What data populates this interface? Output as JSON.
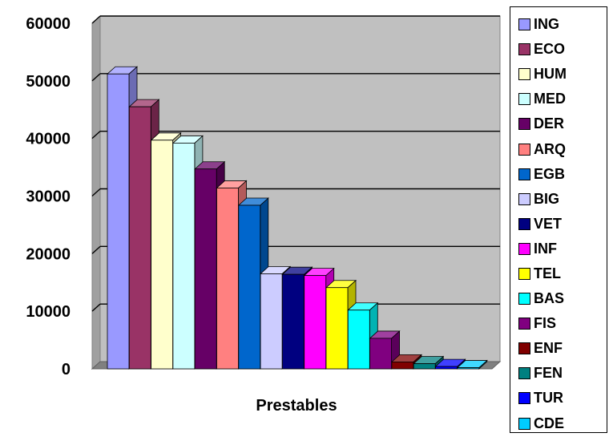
{
  "chart_data": {
    "type": "bar",
    "title": "",
    "xlabel": "Prestables",
    "ylabel": "",
    "ylim": [
      0,
      60000
    ],
    "yticks": [
      0,
      10000,
      20000,
      30000,
      40000,
      50000,
      60000
    ],
    "grid": true,
    "legend_position": "right",
    "series": [
      {
        "name": "ING",
        "value": 51200,
        "color": "#9999ff"
      },
      {
        "name": "ECO",
        "value": 45500,
        "color": "#993366"
      },
      {
        "name": "HUM",
        "value": 39700,
        "color": "#ffffcc"
      },
      {
        "name": "MED",
        "value": 39200,
        "color": "#ccffff"
      },
      {
        "name": "DER",
        "value": 34700,
        "color": "#660066"
      },
      {
        "name": "ARQ",
        "value": 31400,
        "color": "#ff8080"
      },
      {
        "name": "EGB",
        "value": 28400,
        "color": "#0066cc"
      },
      {
        "name": "BIG",
        "value": 16500,
        "color": "#ccccff"
      },
      {
        "name": "VET",
        "value": 16400,
        "color": "#000080"
      },
      {
        "name": "INF",
        "value": 16200,
        "color": "#ff00ff"
      },
      {
        "name": "TEL",
        "value": 14100,
        "color": "#ffff00"
      },
      {
        "name": "BAS",
        "value": 10200,
        "color": "#00ffff"
      },
      {
        "name": "FIS",
        "value": 5300,
        "color": "#800080"
      },
      {
        "name": "ENF",
        "value": 1200,
        "color": "#800000"
      },
      {
        "name": "FEN",
        "value": 900,
        "color": "#008080"
      },
      {
        "name": "TUR",
        "value": 400,
        "color": "#0000ff"
      },
      {
        "name": "CDE",
        "value": 200,
        "color": "#00ccff"
      }
    ]
  },
  "colors": {
    "plot_back": "#c0c0c0",
    "plot_side": "#a0a0a0",
    "plot_floor": "#808080",
    "gridline": "#000000"
  }
}
